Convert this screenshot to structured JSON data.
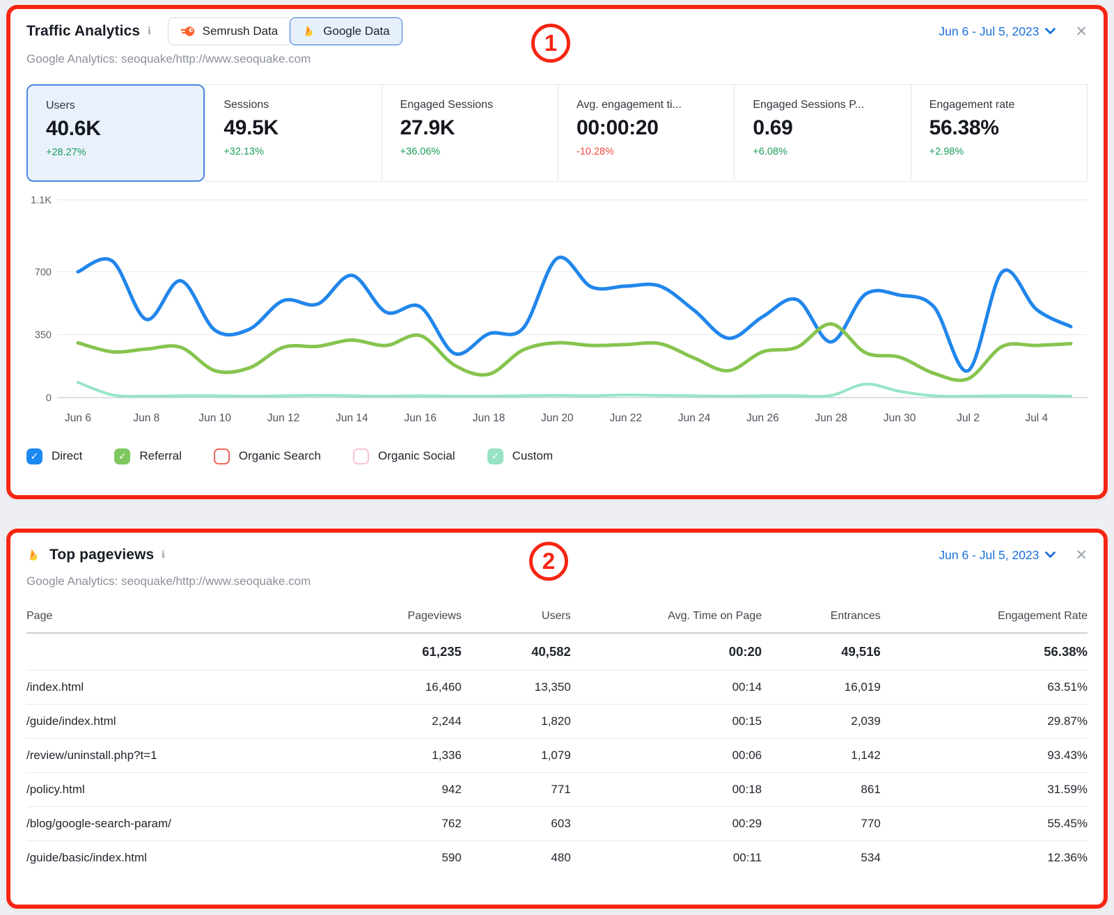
{
  "colors": {
    "annotation_red": "#f52613",
    "date_blue": "#1a6fdd",
    "positive_green": "#1e9e5c",
    "negative_red": "#ee4c41",
    "selected_card_bg": "#e9f1fd",
    "selected_card_border": "#4d86dd"
  },
  "panel1": {
    "annotation": "1",
    "title": "Traffic Analytics",
    "info_icon": "i",
    "buttons": {
      "semrush": "Semrush Data",
      "google": "Google Data"
    },
    "subtitle": "Google Analytics: seoquake/http://www.seoquake.com",
    "date_range": "Jun 6 - Jul 5, 2023",
    "close_icon": "✕",
    "metrics": [
      {
        "label": "Users",
        "value": "40.6K",
        "delta": "+28.27%",
        "direction": "up",
        "selected": true
      },
      {
        "label": "Sessions",
        "value": "49.5K",
        "delta": "+32.13%",
        "direction": "up",
        "selected": false
      },
      {
        "label": "Engaged Sessions",
        "value": "27.9K",
        "delta": "+36.06%",
        "direction": "up",
        "selected": false
      },
      {
        "label": "Avg. engagement ti...",
        "value": "00:00:20",
        "delta": "-10.28%",
        "direction": "down",
        "selected": false
      },
      {
        "label": "Engaged Sessions P...",
        "value": "0.69",
        "delta": "+6.08%",
        "direction": "up",
        "selected": false
      },
      {
        "label": "Engagement rate",
        "value": "56.38%",
        "delta": "+2.98%",
        "direction": "up",
        "selected": false
      }
    ]
  },
  "chart_data": {
    "type": "line",
    "title": "Traffic Analytics daily channels",
    "x": [
      "Jun 6",
      "Jun 7",
      "Jun 8",
      "Jun 9",
      "Jun 10",
      "Jun 11",
      "Jun 12",
      "Jun 13",
      "Jun 14",
      "Jun 15",
      "Jun 16",
      "Jun 17",
      "Jun 18",
      "Jun 19",
      "Jun 20",
      "Jun 21",
      "Jun 22",
      "Jun 23",
      "Jun 24",
      "Jun 25",
      "Jun 26",
      "Jun 27",
      "Jun 28",
      "Jun 29",
      "Jun 30",
      "Jul 1",
      "Jul 2",
      "Jul 3",
      "Jul 4",
      "Jul 5"
    ],
    "tick_labels": [
      "Jun 6",
      "Jun 8",
      "Jun 10",
      "Jun 12",
      "Jun 14",
      "Jun 16",
      "Jun 18",
      "Jun 20",
      "Jun 22",
      "Jun 24",
      "Jun 26",
      "Jun 28",
      "Jun 30",
      "Jul 2",
      "Jul 4"
    ],
    "ylim": [
      0,
      1100
    ],
    "yticks": [
      {
        "v": 1100,
        "label": "1.1K"
      },
      {
        "v": 700,
        "label": "700"
      },
      {
        "v": 350,
        "label": "350"
      },
      {
        "v": 0,
        "label": "0"
      }
    ],
    "grid": true,
    "legend_position": "bottom",
    "series": [
      {
        "name": "Direct",
        "color": "#2186eb",
        "width": 5,
        "values": [
          700,
          760,
          435,
          650,
          375,
          380,
          540,
          520,
          680,
          475,
          505,
          245,
          355,
          385,
          775,
          615,
          620,
          620,
          485,
          330,
          450,
          545,
          310,
          575,
          570,
          505,
          150,
          700,
          490,
          395
        ]
      },
      {
        "name": "Referral",
        "color": "#86c44f",
        "width": 5,
        "values": [
          305,
          255,
          270,
          280,
          150,
          165,
          280,
          285,
          320,
          290,
          345,
          180,
          130,
          265,
          305,
          290,
          295,
          300,
          220,
          150,
          255,
          280,
          410,
          250,
          225,
          135,
          105,
          285,
          290,
          300
        ]
      },
      {
        "name": "Custom",
        "color": "#97e5c5",
        "width": 4,
        "values": [
          85,
          15,
          8,
          10,
          10,
          8,
          10,
          12,
          10,
          8,
          10,
          8,
          8,
          10,
          12,
          10,
          15,
          12,
          10,
          8,
          10,
          10,
          12,
          75,
          35,
          10,
          8,
          10,
          10,
          8
        ]
      }
    ],
    "legend": [
      {
        "label": "Direct",
        "checked": true,
        "color": "#1e88f2"
      },
      {
        "label": "Referral",
        "checked": true,
        "color": "#7ec75f"
      },
      {
        "label": "Organic Search",
        "checked": false,
        "color": "#f2685e"
      },
      {
        "label": "Organic Social",
        "checked": false,
        "color": "#f8c3ce"
      },
      {
        "label": "Custom",
        "checked": true,
        "color": "#97e3c3"
      }
    ],
    "check_glyph": "✓"
  },
  "panel2": {
    "annotation": "2",
    "title": "Top pageviews",
    "info_icon": "i",
    "subtitle": "Google Analytics: seoquake/http://www.seoquake.com",
    "date_range": "Jun 6 - Jul 5, 2023",
    "close_icon": "✕",
    "table": {
      "columns": [
        "Page",
        "Pageviews",
        "Users",
        "Avg. Time on Page",
        "Entrances",
        "Engagement Rate"
      ],
      "totals": [
        "",
        "61,235",
        "40,582",
        "00:20",
        "49,516",
        "56.38%"
      ],
      "rows": [
        [
          "/index.html",
          "16,460",
          "13,350",
          "00:14",
          "16,019",
          "63.51%"
        ],
        [
          "/guide/index.html",
          "2,244",
          "1,820",
          "00:15",
          "2,039",
          "29.87%"
        ],
        [
          "/review/uninstall.php?t=1",
          "1,336",
          "1,079",
          "00:06",
          "1,142",
          "93.43%"
        ],
        [
          "/policy.html",
          "942",
          "771",
          "00:18",
          "861",
          "31.59%"
        ],
        [
          "/blog/google-search-param/",
          "762",
          "603",
          "00:29",
          "770",
          "55.45%"
        ],
        [
          "/guide/basic/index.html",
          "590",
          "480",
          "00:11",
          "534",
          "12.36%"
        ]
      ]
    }
  }
}
